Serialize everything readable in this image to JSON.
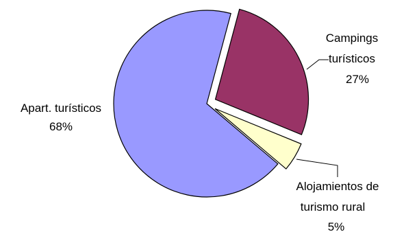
{
  "chart_data": {
    "type": "pie",
    "title": "",
    "slices": [
      {
        "name": "Apart. turísticos",
        "value": 68,
        "value_label": "68%",
        "color": "#9999ff",
        "exploded": false
      },
      {
        "name": "Campings turísticos",
        "name_lines": [
          "Campings",
          "turísticos"
        ],
        "value": 27,
        "value_label": "27%",
        "color": "#993366",
        "exploded": true
      },
      {
        "name": "Alojamientos de turismo rural",
        "name_lines": [
          "Alojamientos de",
          "turismo rural"
        ],
        "value": 5,
        "value_label": "5%",
        "color": "#ffffcc",
        "exploded": true
      }
    ],
    "start_angle_deg": 15,
    "direction": "clockwise",
    "legend": "none",
    "labels": "outside-with-leader-lines"
  }
}
